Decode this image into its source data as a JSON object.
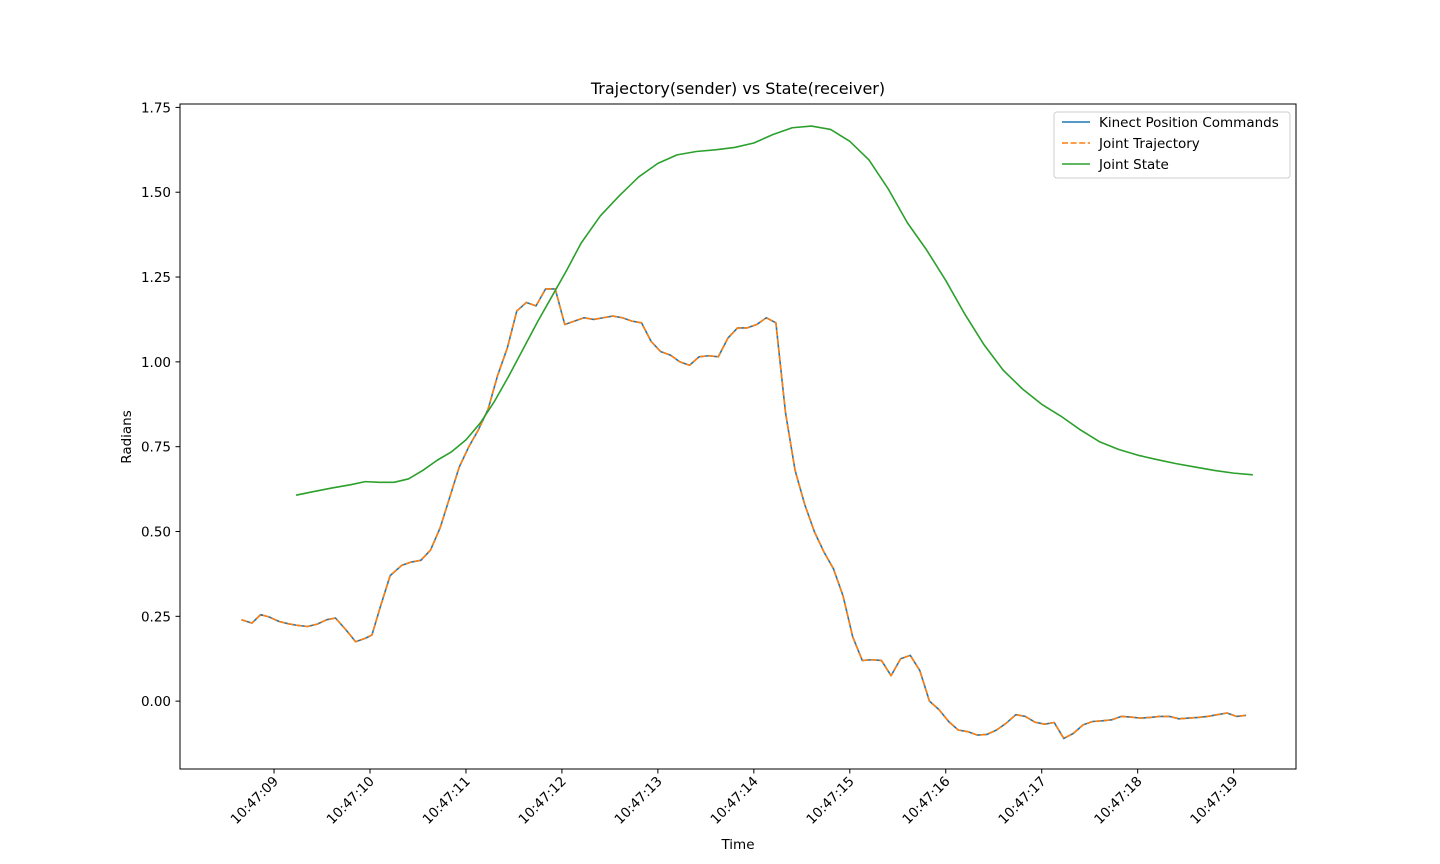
{
  "chart_data": {
    "type": "line",
    "title": "Trajectory(sender) vs State(receiver)",
    "xlabel": "Time",
    "ylabel": "Radians",
    "x_ticks": [
      "10:47:09",
      "10:47:10",
      "10:47:11",
      "10:47:12",
      "10:47:13",
      "10:47:14",
      "10:47:15",
      "10:47:16",
      "10:47:17",
      "10:47:18",
      "10:47:19"
    ],
    "y_ticks": [
      "0.00",
      "0.25",
      "0.50",
      "0.75",
      "1.00",
      "1.25",
      "1.50",
      "1.75"
    ],
    "xlim": [
      "10:47:08.02",
      "10:47:19.65"
    ],
    "ylim": [
      -0.2,
      1.76
    ],
    "grid": false,
    "legend_position": "top-right",
    "series": [
      {
        "name": "Kinect Position Commands",
        "color": "#1f77b4",
        "style": "solid",
        "x": [
          "10:47:08.66",
          "10:47:08.77",
          "10:47:08.86",
          "10:47:08.95",
          "10:47:09.05",
          "10:47:09.15",
          "10:47:09.25",
          "10:47:09.35",
          "10:47:09.45",
          "10:47:09.55",
          "10:47:09.64",
          "10:47:09.75",
          "10:47:09.85",
          "10:47:09.95",
          "10:47:10.02",
          "10:47:10.11",
          "10:47:10.21",
          "10:47:10.33",
          "10:47:10.43",
          "10:47:10.53",
          "10:47:10.63",
          "10:47:10.73",
          "10:47:10.83",
          "10:47:10.93",
          "10:47:11.03",
          "10:47:11.13",
          "10:47:11.23",
          "10:47:11.33",
          "10:47:11.43",
          "10:47:11.53",
          "10:47:11.63",
          "10:47:11.73",
          "10:47:11.83",
          "10:47:11.93",
          "10:47:12.03",
          "10:47:12.13",
          "10:47:12.23",
          "10:47:12.33",
          "10:47:12.43",
          "10:47:12.53",
          "10:47:12.63",
          "10:47:12.73",
          "10:47:12.83",
          "10:47:12.93",
          "10:47:13.03",
          "10:47:13.13",
          "10:47:13.23",
          "10:47:13.33",
          "10:47:13.43",
          "10:47:13.53",
          "10:47:13.63",
          "10:47:13.73",
          "10:47:13.83",
          "10:47:13.93",
          "10:47:14.03",
          "10:47:14.13",
          "10:47:14.23",
          "10:47:14.33",
          "10:47:14.43",
          "10:47:14.53",
          "10:47:14.63",
          "10:47:14.73",
          "10:47:14.83",
          "10:47:14.93",
          "10:47:15.03",
          "10:47:15.13",
          "10:47:15.23",
          "10:47:15.33",
          "10:47:15.43",
          "10:47:15.53",
          "10:47:15.63",
          "10:47:15.73",
          "10:47:15.83",
          "10:47:15.93",
          "10:47:16.03",
          "10:47:16.13",
          "10:47:16.23",
          "10:47:16.33",
          "10:47:16.43",
          "10:47:16.53",
          "10:47:16.63",
          "10:47:16.73",
          "10:47:16.83",
          "10:47:16.93",
          "10:47:17.03",
          "10:47:17.13",
          "10:47:17.23",
          "10:47:17.33",
          "10:47:17.43",
          "10:47:17.53",
          "10:47:17.63",
          "10:47:17.73",
          "10:47:17.83",
          "10:47:17.93",
          "10:47:18.03",
          "10:47:18.13",
          "10:47:18.23",
          "10:47:18.33",
          "10:47:18.43",
          "10:47:18.53",
          "10:47:18.63",
          "10:47:18.73",
          "10:47:18.83",
          "10:47:18.93",
          "10:47:19.03",
          "10:47:19.13"
        ],
        "y": [
          0.24,
          0.23,
          0.255,
          0.248,
          0.235,
          0.228,
          0.223,
          0.22,
          0.227,
          0.24,
          0.245,
          0.21,
          0.175,
          0.185,
          0.195,
          0.28,
          0.37,
          0.4,
          0.41,
          0.415,
          0.445,
          0.51,
          0.6,
          0.69,
          0.75,
          0.8,
          0.86,
          0.96,
          1.04,
          1.15,
          1.175,
          1.165,
          1.215,
          1.215,
          1.11,
          1.12,
          1.13,
          1.125,
          1.13,
          1.135,
          1.13,
          1.12,
          1.115,
          1.06,
          1.03,
          1.02,
          1.0,
          0.99,
          1.015,
          1.018,
          1.015,
          1.07,
          1.1,
          1.1,
          1.11,
          1.13,
          1.115,
          0.85,
          0.68,
          0.58,
          0.5,
          0.44,
          0.39,
          0.31,
          0.19,
          0.12,
          0.122,
          0.12,
          0.075,
          0.125,
          0.135,
          0.09,
          0.0,
          -0.025,
          -0.06,
          -0.085,
          -0.09,
          -0.1,
          -0.098,
          -0.085,
          -0.065,
          -0.04,
          -0.045,
          -0.062,
          -0.068,
          -0.063,
          -0.11,
          -0.095,
          -0.07,
          -0.06,
          -0.058,
          -0.055,
          -0.045,
          -0.047,
          -0.05,
          -0.048,
          -0.045,
          -0.045,
          -0.052,
          -0.05,
          -0.048,
          -0.045,
          -0.04,
          -0.035,
          -0.045,
          -0.042
        ]
      },
      {
        "name": "Joint Trajectory",
        "color": "#ff7f0e",
        "style": "dashed",
        "x": [
          "10:47:08.66",
          "10:47:08.77",
          "10:47:08.86",
          "10:47:08.95",
          "10:47:09.05",
          "10:47:09.15",
          "10:47:09.25",
          "10:47:09.35",
          "10:47:09.45",
          "10:47:09.55",
          "10:47:09.64",
          "10:47:09.75",
          "10:47:09.85",
          "10:47:09.95",
          "10:47:10.02",
          "10:47:10.11",
          "10:47:10.21",
          "10:47:10.33",
          "10:47:10.43",
          "10:47:10.53",
          "10:47:10.63",
          "10:47:10.73",
          "10:47:10.83",
          "10:47:10.93",
          "10:47:11.03",
          "10:47:11.13",
          "10:47:11.23",
          "10:47:11.33",
          "10:47:11.43",
          "10:47:11.53",
          "10:47:11.63",
          "10:47:11.73",
          "10:47:11.83",
          "10:47:11.93",
          "10:47:12.03",
          "10:47:12.13",
          "10:47:12.23",
          "10:47:12.33",
          "10:47:12.43",
          "10:47:12.53",
          "10:47:12.63",
          "10:47:12.73",
          "10:47:12.83",
          "10:47:12.93",
          "10:47:13.03",
          "10:47:13.13",
          "10:47:13.23",
          "10:47:13.33",
          "10:47:13.43",
          "10:47:13.53",
          "10:47:13.63",
          "10:47:13.73",
          "10:47:13.83",
          "10:47:13.93",
          "10:47:14.03",
          "10:47:14.13",
          "10:47:14.23",
          "10:47:14.33",
          "10:47:14.43",
          "10:47:14.53",
          "10:47:14.63",
          "10:47:14.73",
          "10:47:14.83",
          "10:47:14.93",
          "10:47:15.03",
          "10:47:15.13",
          "10:47:15.23",
          "10:47:15.33",
          "10:47:15.43",
          "10:47:15.53",
          "10:47:15.63",
          "10:47:15.73",
          "10:47:15.83",
          "10:47:15.93",
          "10:47:16.03",
          "10:47:16.13",
          "10:47:16.23",
          "10:47:16.33",
          "10:47:16.43",
          "10:47:16.53",
          "10:47:16.63",
          "10:47:16.73",
          "10:47:16.83",
          "10:47:16.93",
          "10:47:17.03",
          "10:47:17.13",
          "10:47:17.23",
          "10:47:17.33",
          "10:47:17.43",
          "10:47:17.53",
          "10:47:17.63",
          "10:47:17.73",
          "10:47:17.83",
          "10:47:17.93",
          "10:47:18.03",
          "10:47:18.13",
          "10:47:18.23",
          "10:47:18.33",
          "10:47:18.43",
          "10:47:18.53",
          "10:47:18.63",
          "10:47:18.73",
          "10:47:18.83",
          "10:47:18.93",
          "10:47:19.03",
          "10:47:19.13"
        ],
        "y": [
          0.24,
          0.23,
          0.255,
          0.248,
          0.235,
          0.228,
          0.223,
          0.22,
          0.227,
          0.24,
          0.245,
          0.21,
          0.175,
          0.185,
          0.195,
          0.28,
          0.37,
          0.4,
          0.41,
          0.415,
          0.445,
          0.51,
          0.6,
          0.69,
          0.75,
          0.8,
          0.86,
          0.96,
          1.04,
          1.15,
          1.175,
          1.165,
          1.215,
          1.215,
          1.11,
          1.12,
          1.13,
          1.125,
          1.13,
          1.135,
          1.13,
          1.12,
          1.115,
          1.06,
          1.03,
          1.02,
          1.0,
          0.99,
          1.015,
          1.018,
          1.015,
          1.07,
          1.1,
          1.1,
          1.11,
          1.13,
          1.115,
          0.85,
          0.68,
          0.58,
          0.5,
          0.44,
          0.39,
          0.31,
          0.19,
          0.12,
          0.122,
          0.12,
          0.075,
          0.125,
          0.135,
          0.09,
          0.0,
          -0.025,
          -0.06,
          -0.085,
          -0.09,
          -0.1,
          -0.098,
          -0.085,
          -0.065,
          -0.04,
          -0.045,
          -0.062,
          -0.068,
          -0.063,
          -0.11,
          -0.095,
          -0.07,
          -0.06,
          -0.058,
          -0.055,
          -0.045,
          -0.047,
          -0.05,
          -0.048,
          -0.045,
          -0.045,
          -0.052,
          -0.05,
          -0.048,
          -0.045,
          -0.04,
          -0.035,
          -0.045,
          -0.042
        ]
      },
      {
        "name": "Joint State",
        "color": "#2ca02c",
        "style": "solid",
        "x": [
          "10:47:09.23",
          "10:47:09.40",
          "10:47:09.60",
          "10:47:09.80",
          "10:47:09.95",
          "10:47:10.10",
          "10:47:10.25",
          "10:47:10.40",
          "10:47:10.55",
          "10:47:10.70",
          "10:47:10.85",
          "10:47:11.00",
          "10:47:11.15",
          "10:47:11.30",
          "10:47:11.45",
          "10:47:11.60",
          "10:47:11.75",
          "10:47:11.90",
          "10:47:12.05",
          "10:47:12.20",
          "10:47:12.40",
          "10:47:12.60",
          "10:47:12.80",
          "10:47:13.00",
          "10:47:13.20",
          "10:47:13.40",
          "10:47:13.60",
          "10:47:13.80",
          "10:47:14.00",
          "10:47:14.20",
          "10:47:14.40",
          "10:47:14.60",
          "10:47:14.80",
          "10:47:15.00",
          "10:47:15.20",
          "10:47:15.40",
          "10:47:15.60",
          "10:47:15.80",
          "10:47:16.00",
          "10:47:16.20",
          "10:47:16.40",
          "10:47:16.60",
          "10:47:16.80",
          "10:47:17.00",
          "10:47:17.20",
          "10:47:17.40",
          "10:47:17.60",
          "10:47:17.80",
          "10:47:18.00",
          "10:47:18.20",
          "10:47:18.40",
          "10:47:18.60",
          "10:47:18.80",
          "10:47:19.00",
          "10:47:19.20"
        ],
        "y": [
          0.607,
          0.617,
          0.628,
          0.638,
          0.647,
          0.645,
          0.645,
          0.655,
          0.68,
          0.71,
          0.735,
          0.77,
          0.82,
          0.885,
          0.96,
          1.04,
          1.12,
          1.195,
          1.27,
          1.35,
          1.43,
          1.49,
          1.545,
          1.585,
          1.61,
          1.62,
          1.625,
          1.632,
          1.645,
          1.67,
          1.69,
          1.695,
          1.685,
          1.65,
          1.595,
          1.51,
          1.41,
          1.33,
          1.24,
          1.14,
          1.05,
          0.975,
          0.92,
          0.875,
          0.84,
          0.8,
          0.765,
          0.742,
          0.725,
          0.712,
          0.7,
          0.69,
          0.68,
          0.672,
          0.667
        ]
      }
    ]
  }
}
